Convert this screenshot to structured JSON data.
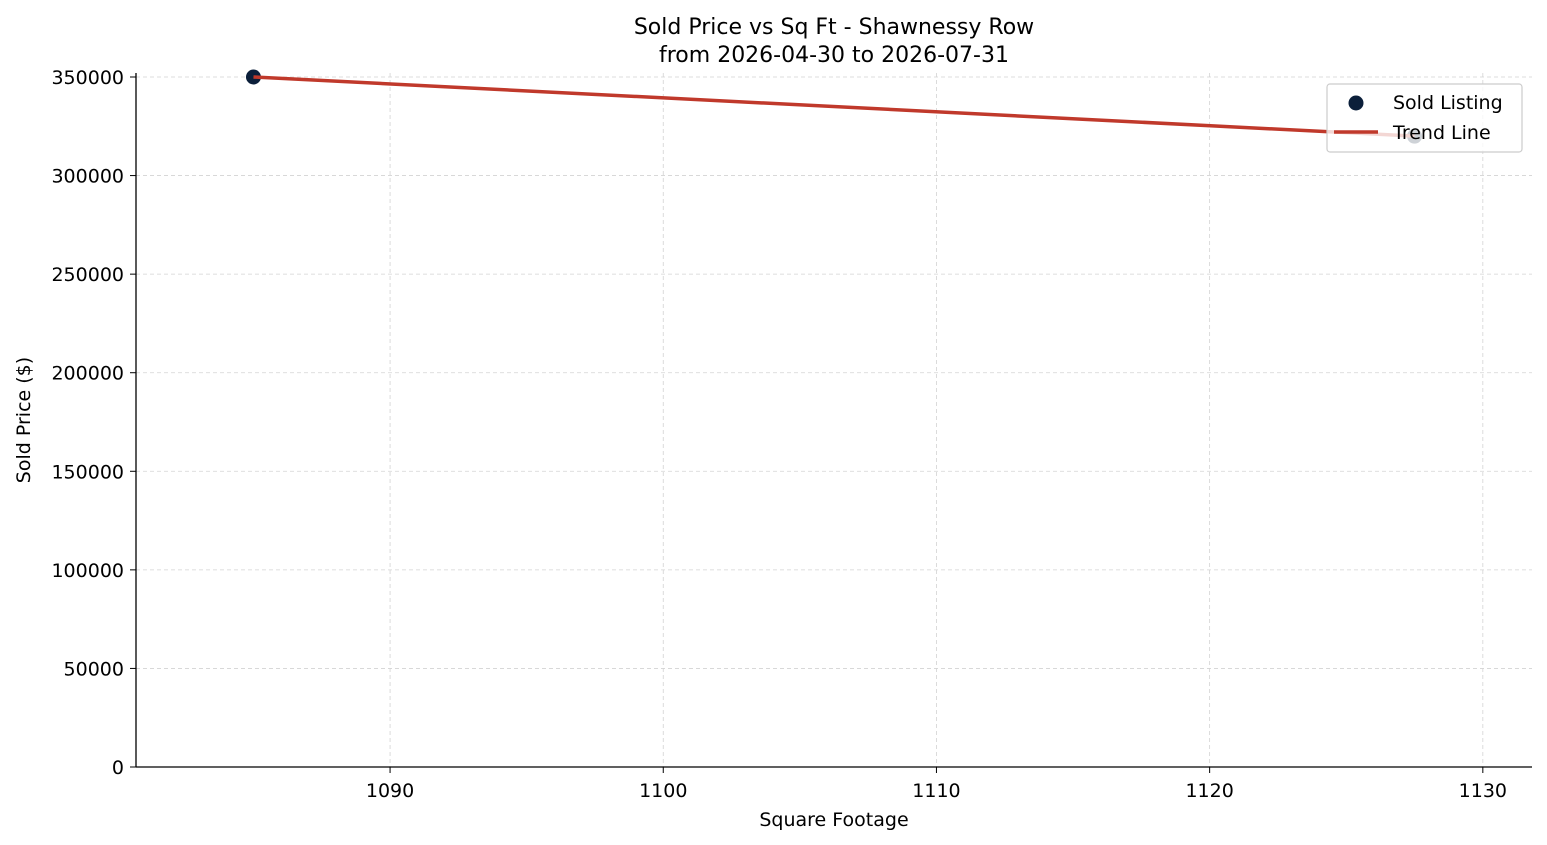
{
  "chart_data": {
    "type": "scatter",
    "title": "Sold Price vs Sq Ft - Shawnessy Row",
    "subtitle": "from 2026-04-30 to 2026-07-31",
    "xlabel": "Square Footage",
    "ylabel": "Sold Price ($)",
    "xlim": [
      1080.7,
      1131.8
    ],
    "ylim": [
      0,
      350000
    ],
    "xticks": [
      1090,
      1100,
      1110,
      1120,
      1130
    ],
    "yticks": [
      0,
      50000,
      100000,
      150000,
      200000,
      250000,
      300000,
      350000
    ],
    "grid": true,
    "legend_position": "top-right",
    "series": [
      {
        "name": "Sold Listing",
        "kind": "scatter",
        "color": "#0b1f3a",
        "points": [
          {
            "x": 1085,
            "y": 350000
          },
          {
            "x": 1127.5,
            "y": 320000
          }
        ]
      },
      {
        "name": "Trend Line",
        "kind": "line",
        "color": "#c0392b",
        "points": [
          {
            "x": 1085,
            "y": 350000
          },
          {
            "x": 1127.5,
            "y": 320000
          }
        ]
      }
    ]
  }
}
